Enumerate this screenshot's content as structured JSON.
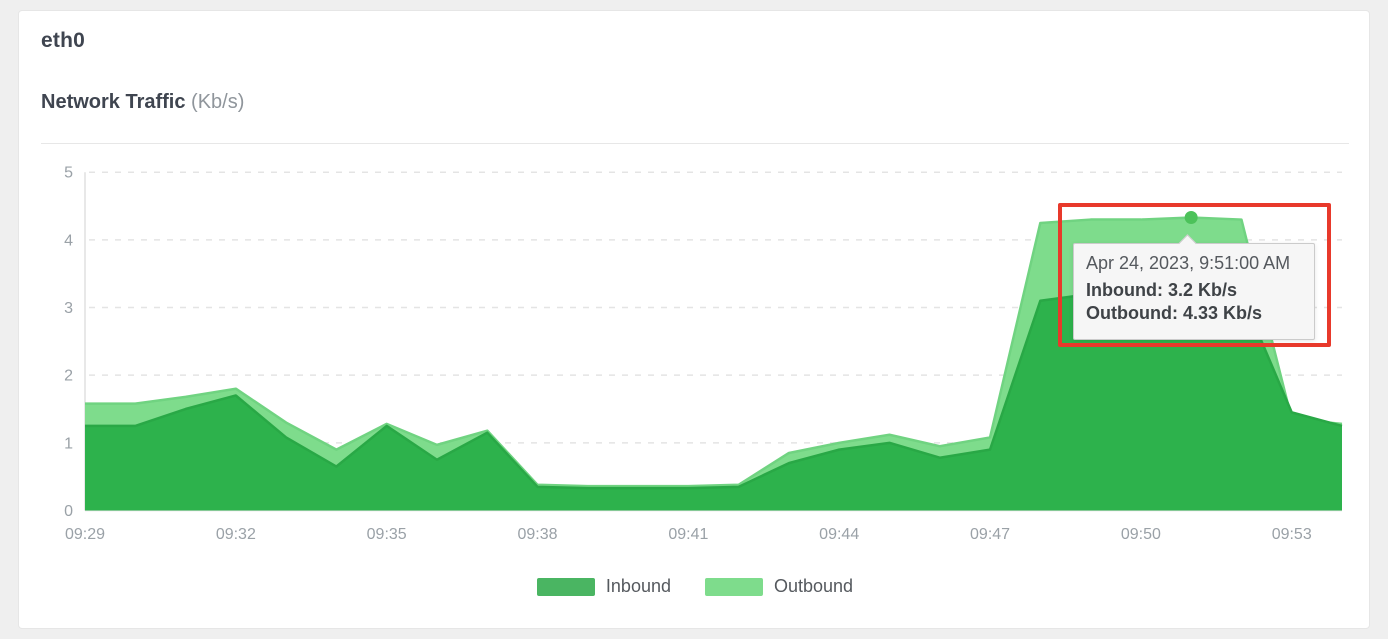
{
  "panel": {
    "title": "eth0",
    "subtitle": "Network Traffic",
    "subtitle_unit": "(Kb/s)"
  },
  "chart_data": {
    "type": "area",
    "title": "Network Traffic (Kb/s)",
    "x": [
      "09:29",
      "09:30",
      "09:31",
      "09:32",
      "09:33",
      "09:34",
      "09:35",
      "09:36",
      "09:37",
      "09:38",
      "09:39",
      "09:40",
      "09:41",
      "09:42",
      "09:43",
      "09:44",
      "09:45",
      "09:46",
      "09:47",
      "09:48",
      "09:49",
      "09:50",
      "09:51",
      "09:52",
      "09:53",
      "09:54"
    ],
    "x_tick_labels": [
      "09:29",
      "09:32",
      "09:35",
      "09:38",
      "09:41",
      "09:44",
      "09:47",
      "09:50",
      "09:53"
    ],
    "series": [
      {
        "name": "Outbound",
        "color": "#7edc8c",
        "line_color": "#70d381",
        "values": [
          1.58,
          1.58,
          1.68,
          1.8,
          1.3,
          0.9,
          1.28,
          0.97,
          1.18,
          0.38,
          0.36,
          0.36,
          0.36,
          0.38,
          0.85,
          1.0,
          1.12,
          0.95,
          1.08,
          4.25,
          4.3,
          4.3,
          4.33,
          4.3,
          1.35,
          1.28
        ]
      },
      {
        "name": "Inbound",
        "color": "#2db24c",
        "line_color": "#29a846",
        "values": [
          1.25,
          1.25,
          1.5,
          1.7,
          1.08,
          0.65,
          1.25,
          0.75,
          1.15,
          0.35,
          0.33,
          0.33,
          0.33,
          0.35,
          0.7,
          0.9,
          1.0,
          0.78,
          0.9,
          3.1,
          3.2,
          3.2,
          3.2,
          3.2,
          1.45,
          1.25
        ]
      }
    ],
    "ylim": [
      0,
      5
    ],
    "y_ticks": [
      0,
      1,
      2,
      3,
      4,
      5
    ],
    "grid": "horizontal-dashed",
    "grid_color": "#e4e4e4",
    "axis_color": "#e0e0e0",
    "tick_text_color": "#9aa1a7",
    "legend_position": "bottom-center"
  },
  "tooltip": {
    "timestamp": "Apr 24, 2023, 9:51:00 AM",
    "inbound_label": "Inbound: 3.2 Kb/s",
    "outbound_label": "Outbound: 4.33 Kb/s",
    "point_time": "09:51",
    "point_index": 22,
    "marker_value": 4.33,
    "marker_color": "#4cc25a"
  },
  "legend": [
    {
      "label": "Inbound",
      "color": "#4ab562"
    },
    {
      "label": "Outbound",
      "color": "#7edc8c"
    }
  ],
  "annotation": {
    "type": "highlight-box",
    "color": "#e8392b"
  }
}
